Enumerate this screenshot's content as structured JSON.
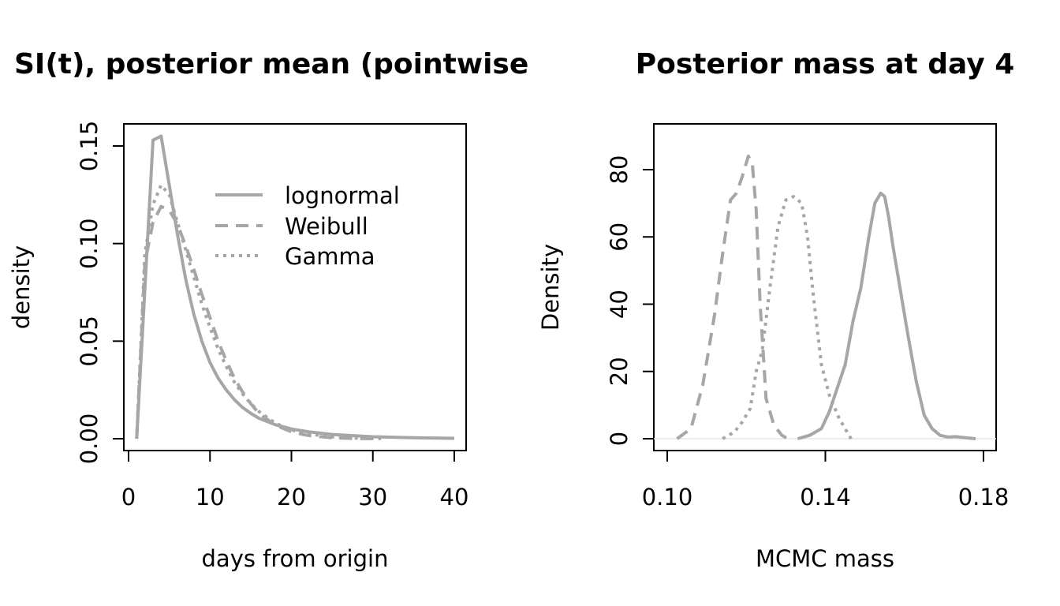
{
  "chart_data": [
    {
      "type": "line",
      "title": "SI(t), posterior mean (pointwise)",
      "xlabel": "days from origin",
      "ylabel": "density",
      "xlim": [
        0,
        40
      ],
      "ylim": [
        0,
        0.15
      ],
      "x_ticks": [
        "0",
        "10",
        "20",
        "30",
        "40"
      ],
      "y_ticks": [
        "0.00",
        "0.05",
        "0.10",
        "0.15"
      ],
      "grid": false,
      "legend_position": "top-right",
      "series_color": "#a6a6a6",
      "series": [
        {
          "name": "lognormal",
          "linestyle": "solid",
          "x": [
            1,
            3,
            4,
            5,
            6,
            7,
            8,
            9,
            10,
            11,
            12,
            13,
            14,
            15,
            16,
            18,
            20,
            22,
            25,
            30,
            35,
            40
          ],
          "y": [
            0.0,
            0.153,
            0.155,
            0.13,
            0.105,
            0.082,
            0.064,
            0.05,
            0.039,
            0.031,
            0.025,
            0.02,
            0.016,
            0.013,
            0.0105,
            0.0072,
            0.005,
            0.0036,
            0.0022,
            0.001,
            0.0005,
            0.0002
          ]
        },
        {
          "name": "Weibull",
          "linestyle": "dashed",
          "x": [
            1,
            2,
            3,
            4,
            5,
            6,
            7,
            8,
            9,
            10,
            11,
            12,
            13,
            14,
            15,
            16,
            18,
            20,
            22,
            25,
            28,
            31
          ],
          "y": [
            0.0,
            0.09,
            0.111,
            0.119,
            0.117,
            0.11,
            0.099,
            0.087,
            0.074,
            0.062,
            0.05,
            0.04,
            0.031,
            0.024,
            0.018,
            0.013,
            0.007,
            0.0035,
            0.0017,
            0.0005,
            0.0001,
            0.0
          ]
        },
        {
          "name": "Gamma",
          "linestyle": "dotted",
          "x": [
            1,
            2,
            3,
            4,
            5,
            6,
            7,
            8,
            9,
            10,
            11,
            12,
            13,
            14,
            15,
            16,
            18,
            20,
            22,
            25,
            28,
            31
          ],
          "y": [
            0.0,
            0.095,
            0.12,
            0.13,
            0.125,
            0.111,
            0.097,
            0.083,
            0.069,
            0.057,
            0.046,
            0.037,
            0.029,
            0.023,
            0.018,
            0.014,
            0.008,
            0.0045,
            0.0025,
            0.0009,
            0.0003,
            0.0001
          ]
        }
      ]
    },
    {
      "type": "line",
      "title": "Posterior mass at day 4",
      "xlabel": "MCMC mass",
      "ylabel": "Density",
      "xlim": [
        0.1,
        0.18
      ],
      "ylim": [
        0,
        80
      ],
      "x_ticks": [
        "0.10",
        "0.14",
        "0.18"
      ],
      "y_ticks": [
        "0",
        "20",
        "40",
        "60",
        "80"
      ],
      "grid": false,
      "baseline": 0,
      "series_color": "#a6a6a6",
      "series": [
        {
          "linestyle": "dashed",
          "x": [
            0.1025,
            0.106,
            0.109,
            0.112,
            0.114,
            0.116,
            0.1175,
            0.119,
            0.1205,
            0.1215,
            0.1225,
            0.1235,
            0.125,
            0.127,
            0.129,
            0.1305
          ],
          "y": [
            0,
            3,
            16,
            37,
            55,
            71,
            73,
            78,
            84,
            82,
            68,
            40,
            12,
            4,
            1,
            0
          ]
        },
        {
          "linestyle": "dotted",
          "x": [
            0.114,
            0.117,
            0.119,
            0.121,
            0.1225,
            0.124,
            0.126,
            0.128,
            0.13,
            0.132,
            0.134,
            0.1355,
            0.137,
            0.139,
            0.141,
            0.1435,
            0.1465
          ],
          "y": [
            0,
            2,
            5,
            9,
            20,
            26,
            45,
            63,
            71,
            72,
            70,
            60,
            42,
            22,
            13,
            6,
            0
          ]
        },
        {
          "linestyle": "solid",
          "x": [
            0.133,
            0.136,
            0.139,
            0.141,
            0.143,
            0.145,
            0.147,
            0.149,
            0.151,
            0.1525,
            0.154,
            0.155,
            0.156,
            0.157,
            0.159,
            0.161,
            0.163,
            0.165,
            0.167,
            0.169,
            0.171,
            0.173,
            0.1755,
            0.178
          ],
          "y": [
            0,
            1,
            3,
            8,
            15,
            22,
            35,
            45,
            60,
            70,
            73,
            72,
            66,
            58,
            44,
            30,
            17,
            7,
            3,
            1,
            0.5,
            0.6,
            0.3,
            0
          ]
        }
      ]
    }
  ]
}
